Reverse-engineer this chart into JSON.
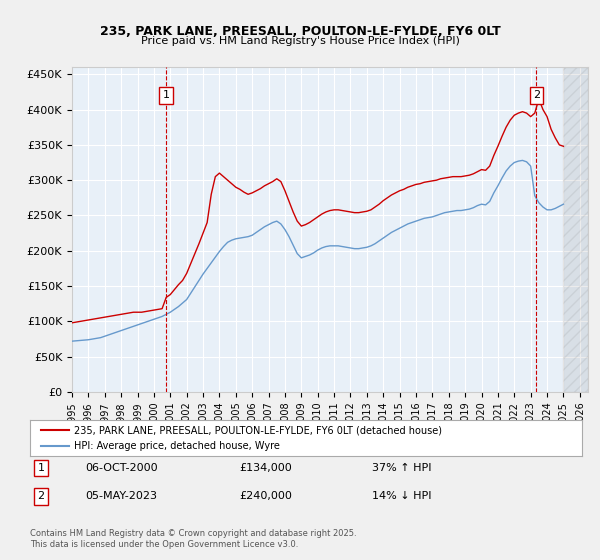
{
  "title": "235, PARK LANE, PREESALL, POULTON-LE-FYLDE, FY6 0LT",
  "subtitle": "Price paid vs. HM Land Registry's House Price Index (HPI)",
  "ylabel_ticks": [
    "£0",
    "£50K",
    "£100K",
    "£150K",
    "£200K",
    "£250K",
    "£300K",
    "£350K",
    "£400K",
    "£450K"
  ],
  "ylim": [
    0,
    460000
  ],
  "xlim_start": 1995.0,
  "xlim_end": 2026.5,
  "bg_color": "#dce9f5",
  "plot_bg": "#e8f0f8",
  "grid_color": "#ffffff",
  "red_color": "#cc0000",
  "blue_color": "#6699cc",
  "marker1_x": 2000.75,
  "marker1_y": 134000,
  "marker2_x": 2023.35,
  "marker2_y": 240000,
  "legend_line1": "235, PARK LANE, PREESALL, POULTON-LE-FYLDE, FY6 0LT (detached house)",
  "legend_line2": "HPI: Average price, detached house, Wyre",
  "ann1_date": "06-OCT-2000",
  "ann1_price": "£134,000",
  "ann1_hpi": "37% ↑ HPI",
  "ann2_date": "05-MAY-2023",
  "ann2_price": "£240,000",
  "ann2_hpi": "14% ↓ HPI",
  "footer": "Contains HM Land Registry data © Crown copyright and database right 2025.\nThis data is licensed under the Open Government Licence v3.0.",
  "hpi_data_x": [
    1995.0,
    1995.25,
    1995.5,
    1995.75,
    1996.0,
    1996.25,
    1996.5,
    1996.75,
    1997.0,
    1997.25,
    1997.5,
    1997.75,
    1998.0,
    1998.25,
    1998.5,
    1998.75,
    1999.0,
    1999.25,
    1999.5,
    1999.75,
    2000.0,
    2000.25,
    2000.5,
    2000.75,
    2001.0,
    2001.25,
    2001.5,
    2001.75,
    2002.0,
    2002.25,
    2002.5,
    2002.75,
    2003.0,
    2003.25,
    2003.5,
    2003.75,
    2004.0,
    2004.25,
    2004.5,
    2004.75,
    2005.0,
    2005.25,
    2005.5,
    2005.75,
    2006.0,
    2006.25,
    2006.5,
    2006.75,
    2007.0,
    2007.25,
    2007.5,
    2007.75,
    2008.0,
    2008.25,
    2008.5,
    2008.75,
    2009.0,
    2009.25,
    2009.5,
    2009.75,
    2010.0,
    2010.25,
    2010.5,
    2010.75,
    2011.0,
    2011.25,
    2011.5,
    2011.75,
    2012.0,
    2012.25,
    2012.5,
    2012.75,
    2013.0,
    2013.25,
    2013.5,
    2013.75,
    2014.0,
    2014.25,
    2014.5,
    2014.75,
    2015.0,
    2015.25,
    2015.5,
    2015.75,
    2016.0,
    2016.25,
    2016.5,
    2016.75,
    2017.0,
    2017.25,
    2017.5,
    2017.75,
    2018.0,
    2018.25,
    2018.5,
    2018.75,
    2019.0,
    2019.25,
    2019.5,
    2019.75,
    2020.0,
    2020.25,
    2020.5,
    2020.75,
    2021.0,
    2021.25,
    2021.5,
    2021.75,
    2022.0,
    2022.25,
    2022.5,
    2022.75,
    2023.0,
    2023.25,
    2023.5,
    2023.75,
    2024.0,
    2024.25,
    2024.5,
    2024.75,
    2025.0
  ],
  "hpi_data_y": [
    72000,
    72500,
    73000,
    73500,
    74000,
    75000,
    76000,
    77000,
    79000,
    81000,
    83000,
    85000,
    87000,
    89000,
    91000,
    93000,
    95000,
    97000,
    99000,
    101000,
    103000,
    105000,
    107000,
    110000,
    113000,
    117000,
    121000,
    126000,
    131000,
    140000,
    149000,
    158000,
    167000,
    175000,
    183000,
    191000,
    199000,
    206000,
    212000,
    215000,
    217000,
    218000,
    219000,
    220000,
    222000,
    226000,
    230000,
    234000,
    237000,
    240000,
    242000,
    238000,
    230000,
    220000,
    208000,
    196000,
    190000,
    192000,
    194000,
    197000,
    201000,
    204000,
    206000,
    207000,
    207000,
    207000,
    206000,
    205000,
    204000,
    203000,
    203000,
    204000,
    205000,
    207000,
    210000,
    214000,
    218000,
    222000,
    226000,
    229000,
    232000,
    235000,
    238000,
    240000,
    242000,
    244000,
    246000,
    247000,
    248000,
    250000,
    252000,
    254000,
    255000,
    256000,
    257000,
    257000,
    258000,
    259000,
    261000,
    264000,
    266000,
    265000,
    270000,
    282000,
    292000,
    303000,
    313000,
    320000,
    325000,
    327000,
    328000,
    326000,
    320000,
    278000,
    268000,
    262000,
    258000,
    258000,
    260000,
    263000,
    266000
  ],
  "price_data_x": [
    1995.0,
    1995.25,
    1995.5,
    1995.75,
    1996.0,
    1996.25,
    1996.5,
    1996.75,
    1997.0,
    1997.25,
    1997.5,
    1997.75,
    1998.0,
    1998.25,
    1998.5,
    1998.75,
    1999.0,
    1999.25,
    1999.5,
    1999.75,
    2000.0,
    2000.25,
    2000.5,
    2000.75,
    2001.0,
    2001.25,
    2001.5,
    2001.75,
    2002.0,
    2002.25,
    2002.5,
    2002.75,
    2003.0,
    2003.25,
    2003.5,
    2003.75,
    2004.0,
    2004.25,
    2004.5,
    2004.75,
    2005.0,
    2005.25,
    2005.5,
    2005.75,
    2006.0,
    2006.25,
    2006.5,
    2006.75,
    2007.0,
    2007.25,
    2007.5,
    2007.75,
    2008.0,
    2008.25,
    2008.5,
    2008.75,
    2009.0,
    2009.25,
    2009.5,
    2009.75,
    2010.0,
    2010.25,
    2010.5,
    2010.75,
    2011.0,
    2011.25,
    2011.5,
    2011.75,
    2012.0,
    2012.25,
    2012.5,
    2012.75,
    2013.0,
    2013.25,
    2013.5,
    2013.75,
    2014.0,
    2014.25,
    2014.5,
    2014.75,
    2015.0,
    2015.25,
    2015.5,
    2015.75,
    2016.0,
    2016.25,
    2016.5,
    2016.75,
    2017.0,
    2017.25,
    2017.5,
    2017.75,
    2018.0,
    2018.25,
    2018.5,
    2018.75,
    2019.0,
    2019.25,
    2019.5,
    2019.75,
    2020.0,
    2020.25,
    2020.5,
    2020.75,
    2021.0,
    2021.25,
    2021.5,
    2021.75,
    2022.0,
    2022.25,
    2022.5,
    2022.75,
    2023.0,
    2023.25,
    2023.5,
    2023.75,
    2024.0,
    2024.25,
    2024.5,
    2024.75,
    2025.0
  ],
  "price_data_y": [
    98000,
    99000,
    100000,
    101000,
    102000,
    103000,
    104000,
    105000,
    106000,
    107000,
    108000,
    109000,
    110000,
    111000,
    112000,
    113000,
    113000,
    113000,
    114000,
    115000,
    116000,
    117000,
    118000,
    134000,
    138000,
    145000,
    152000,
    158000,
    168000,
    182000,
    196000,
    210000,
    225000,
    240000,
    280000,
    305000,
    310000,
    305000,
    300000,
    295000,
    290000,
    287000,
    283000,
    280000,
    282000,
    285000,
    288000,
    292000,
    295000,
    298000,
    302000,
    298000,
    285000,
    270000,
    255000,
    242000,
    235000,
    237000,
    240000,
    244000,
    248000,
    252000,
    255000,
    257000,
    258000,
    258000,
    257000,
    256000,
    255000,
    254000,
    254000,
    255000,
    256000,
    258000,
    262000,
    266000,
    271000,
    275000,
    279000,
    282000,
    285000,
    287000,
    290000,
    292000,
    294000,
    295000,
    297000,
    298000,
    299000,
    300000,
    302000,
    303000,
    304000,
    305000,
    305000,
    305000,
    306000,
    307000,
    309000,
    312000,
    315000,
    314000,
    320000,
    335000,
    348000,
    362000,
    375000,
    385000,
    392000,
    395000,
    397000,
    395000,
    390000,
    395000,
    415000,
    400000,
    390000,
    372000,
    360000,
    350000,
    348000
  ]
}
